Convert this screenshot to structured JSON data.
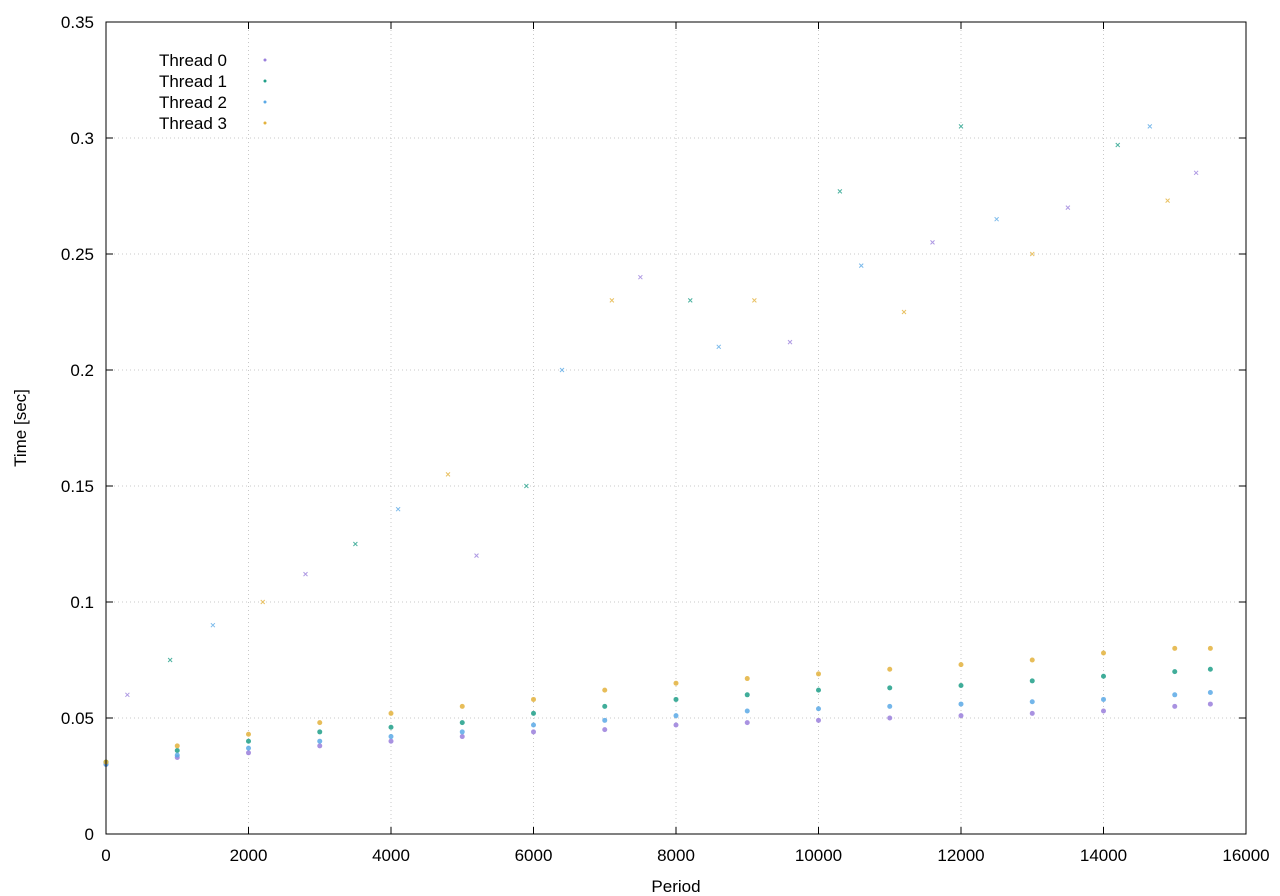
{
  "chart_data": {
    "type": "scatter",
    "title": "",
    "xlabel": "Period",
    "ylabel": "Time [sec]",
    "xlim": [
      0,
      16000
    ],
    "ylim": [
      0,
      0.35
    ],
    "x_ticks": [
      "0",
      "2000",
      "4000",
      "6000",
      "8000",
      "10000",
      "12000",
      "14000",
      "16000"
    ],
    "y_ticks": [
      "0",
      "0.05",
      "0.1",
      "0.15",
      "0.2",
      "0.25",
      "0.3",
      "0.35"
    ],
    "grid": true,
    "legend_position": "top-left",
    "series": [
      {
        "name": "Thread 0",
        "color": "#9a7fdc",
        "x": [
          0,
          1000,
          2000,
          3000,
          4000,
          5000,
          6000,
          7000,
          8000,
          9000,
          10000,
          11000,
          12000,
          13000,
          14000,
          15000,
          15500
        ],
        "y": [
          0.03,
          0.033,
          0.035,
          0.038,
          0.04,
          0.042,
          0.044,
          0.045,
          0.047,
          0.048,
          0.049,
          0.05,
          0.051,
          0.052,
          0.053,
          0.055,
          0.056
        ]
      },
      {
        "name": "Thread 1",
        "color": "#1f9f88",
        "x": [
          0,
          1000,
          2000,
          3000,
          4000,
          5000,
          6000,
          7000,
          8000,
          9000,
          10000,
          11000,
          12000,
          13000,
          14000,
          15000,
          15500
        ],
        "y": [
          0.031,
          0.036,
          0.04,
          0.044,
          0.046,
          0.048,
          0.052,
          0.055,
          0.058,
          0.06,
          0.062,
          0.063,
          0.064,
          0.066,
          0.068,
          0.07,
          0.071
        ]
      },
      {
        "name": "Thread 2",
        "color": "#5aa9e6",
        "x": [
          0,
          1000,
          2000,
          3000,
          4000,
          5000,
          6000,
          7000,
          8000,
          9000,
          10000,
          11000,
          12000,
          13000,
          14000,
          15000,
          15500
        ],
        "y": [
          0.03,
          0.034,
          0.037,
          0.04,
          0.042,
          0.044,
          0.047,
          0.049,
          0.051,
          0.053,
          0.054,
          0.055,
          0.056,
          0.057,
          0.058,
          0.06,
          0.061
        ]
      },
      {
        "name": "Thread 3",
        "color": "#e3b23c",
        "x": [
          0,
          1000,
          2000,
          3000,
          4000,
          5000,
          6000,
          7000,
          8000,
          9000,
          10000,
          11000,
          12000,
          13000,
          14000,
          15000,
          15500
        ],
        "y": [
          0.031,
          0.038,
          0.043,
          0.048,
          0.052,
          0.055,
          0.058,
          0.062,
          0.065,
          0.067,
          0.069,
          0.071,
          0.073,
          0.075,
          0.078,
          0.08,
          0.08
        ]
      }
    ],
    "outliers": {
      "x": [
        300,
        900,
        1500,
        2200,
        2800,
        3500,
        4100,
        4800,
        5200,
        5900,
        6400,
        7100,
        7500,
        8200,
        8600,
        9100,
        9600,
        10300,
        10600,
        11200,
        11600,
        12000,
        12500,
        13000,
        13500,
        14200,
        14650,
        14900,
        15300
      ],
      "y": [
        0.06,
        0.075,
        0.09,
        0.1,
        0.112,
        0.125,
        0.14,
        0.155,
        0.12,
        0.15,
        0.2,
        0.23,
        0.24,
        0.23,
        0.21,
        0.23,
        0.212,
        0.277,
        0.245,
        0.225,
        0.255,
        0.305,
        0.265,
        0.25,
        0.27,
        0.297,
        0.305,
        0.273,
        0.285
      ]
    }
  }
}
